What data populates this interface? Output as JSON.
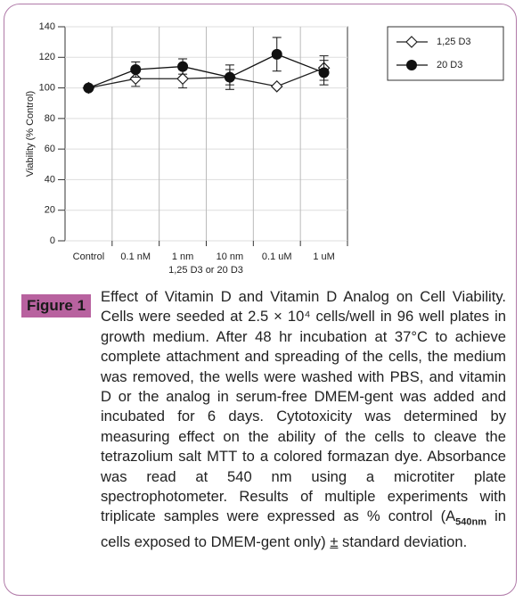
{
  "chart_data": {
    "type": "line",
    "x_label": "1,25 D3 or 20 D3",
    "y_label": "Viability (% Control)",
    "categories": [
      "Control",
      "0.1 nM",
      "1 nm",
      "10 nm",
      "0.1 uM",
      "1 uM"
    ],
    "series": [
      {
        "name": "1,25 D3",
        "color": "#222222",
        "marker": "open-diamond",
        "values": [
          100,
          106,
          106,
          107,
          101,
          113
        ],
        "errors": [
          0,
          5,
          6,
          5,
          0,
          8
        ]
      },
      {
        "name": "20 D3",
        "color": "#111111",
        "marker": "filled-circle",
        "values": [
          100,
          112,
          114,
          107,
          122,
          110
        ],
        "errors": [
          0,
          5,
          5,
          8,
          11,
          8
        ]
      }
    ],
    "ylim": [
      0,
      140
    ],
    "yticks": [
      0,
      20,
      40,
      60,
      80,
      100,
      120,
      140
    ],
    "grid": true,
    "legend": "top-right"
  },
  "figure": {
    "label": "Figure 1",
    "caption": [
      "Effect of Vitamin D and Vitamin D Analog on Cell Viability. Cells were seeded at 2.5 × 10⁴ cells/well in 96 well plates in growth medium. After 48 hr incubation at 37°C to achieve complete attachment and spreading of the cells, the medium was removed, the wells were washed with PBS, and vitamin D or the analog in serum-free DMEM-gent was added and incubated for 6 days. Cytotoxicity was determined by measuring effect on the ability of the cells to cleave the tetrazolium salt MTT to a colored formazan dye. Absorbance was read at 540 nm using a microtiter plate spectrophotometer. Results of multiple experiments with triplicate samples were expressed as % control (A",
      "540nm",
      " in cells exposed to DMEM-gent only) ",
      "±",
      " standard deviation."
    ]
  }
}
